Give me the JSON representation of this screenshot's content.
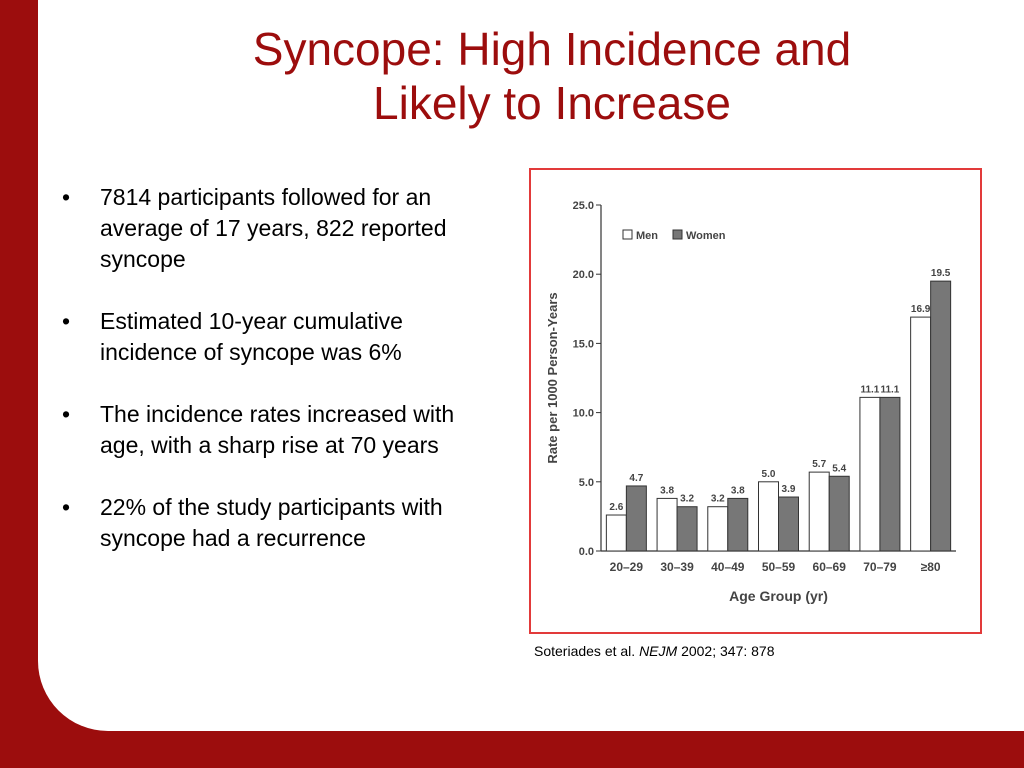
{
  "title": {
    "line1": "Syncope:  High Incidence and",
    "line2": "Likely to Increase"
  },
  "bullets": [
    "7814 participants followed for an average of 17 years, 822 reported syncope",
    "Estimated 10-year cumulative incidence of syncope was 6%",
    "The incidence rates increased with age, with a sharp rise at 70 years",
    "22% of the study participants with syncope had a recurrence"
  ],
  "citation": {
    "authors": "Soteriades et al.",
    "journal": "NEJM",
    "details": "2002; 347: 878"
  },
  "colors": {
    "accent": "#9c0d0d",
    "frame": "#e23a3a",
    "men_fill": "#ffffff",
    "women_fill": "#777777"
  },
  "chart_data": {
    "type": "bar",
    "categories": [
      "20–29",
      "30–39",
      "40–49",
      "50–59",
      "60–69",
      "70–79",
      "≥80"
    ],
    "series": [
      {
        "name": "Men",
        "values": [
          2.6,
          3.8,
          3.2,
          5.0,
          5.7,
          11.1,
          16.9
        ],
        "labels": [
          "2.6",
          "3.8",
          "3.2",
          "5.0",
          "5.7",
          "11.1",
          "16.9"
        ]
      },
      {
        "name": "Women",
        "values": [
          4.7,
          3.2,
          3.8,
          3.9,
          5.4,
          11.1,
          19.5
        ],
        "labels": [
          "4.7",
          "3.2",
          "3.8",
          "3.9",
          "5.4",
          "11.1",
          "19.5"
        ]
      }
    ],
    "xlabel": "Age Group (yr)",
    "ylabel": "Rate per 1000 Person-Years",
    "ylim": [
      0,
      25
    ],
    "yticks": [
      "0.0",
      "5.0",
      "10.0",
      "15.0",
      "20.0",
      "25.0"
    ],
    "legend_position": "top-left",
    "grid": false
  }
}
